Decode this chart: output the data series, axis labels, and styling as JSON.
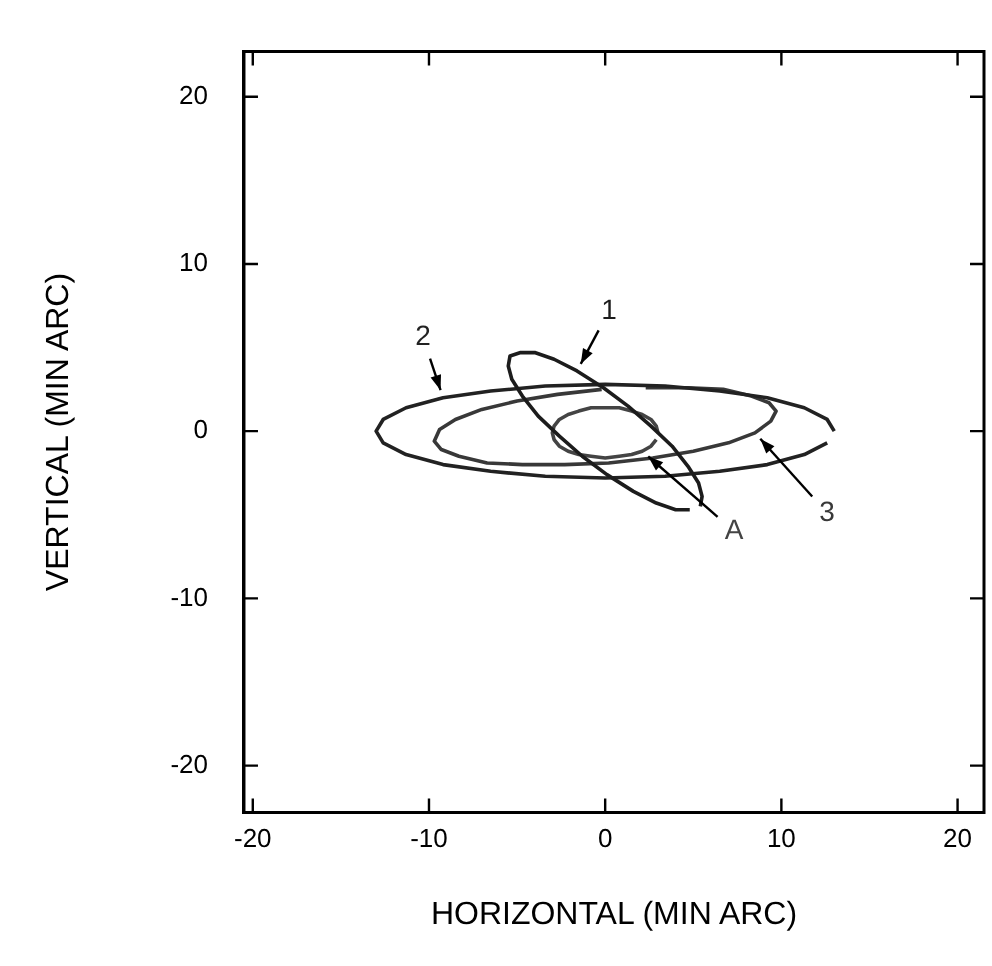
{
  "chart_data": {
    "type": "line",
    "xlabel": "HORIZONTAL (MIN ARC)",
    "ylabel": "VERTICAL (MIN ARC)",
    "xlim": [
      -20.5,
      21.5
    ],
    "ylim": [
      -22.8,
      22.7
    ],
    "xticks": [
      -20,
      -10,
      0,
      10,
      20
    ],
    "yticks": [
      -20,
      -10,
      0,
      10,
      20
    ],
    "marker": "none",
    "line_style": "solid",
    "legend": false,
    "series": [
      {
        "name": "1",
        "color": "#1c1c1c",
        "x": [
          5.4,
          5.5,
          5.3,
          4.7,
          3.8,
          2.6,
          1.3,
          -0.1,
          -1.6,
          -2.9,
          -4.0,
          -4.8,
          -5.4,
          -5.5,
          -5.3,
          -4.7,
          -3.8,
          -2.6,
          -1.3,
          0.1,
          1.6,
          2.9,
          4.0,
          4.8
        ],
        "values": [
          -4.5,
          -3.9,
          -3.1,
          -2.1,
          -0.9,
          0.3,
          1.5,
          2.6,
          3.6,
          4.3,
          4.7,
          4.7,
          4.5,
          3.9,
          3.1,
          2.1,
          0.9,
          -0.3,
          -1.5,
          -2.6,
          -3.6,
          -4.3,
          -4.7,
          -4.7
        ]
      },
      {
        "name": "2",
        "color": "#222222",
        "x": [
          13,
          12.6,
          11.3,
          9.2,
          6.5,
          3.4,
          0,
          -3.4,
          -6.5,
          -9.2,
          -11.3,
          -12.6,
          -13,
          -12.6,
          -11.3,
          -9.2,
          -6.5,
          -3.4,
          0,
          3.4,
          6.5,
          9.2,
          11.3,
          12.6
        ],
        "values": [
          0,
          0.7,
          1.4,
          2.0,
          2.4,
          2.7,
          2.8,
          2.7,
          2.4,
          2.0,
          1.4,
          0.7,
          0,
          -0.7,
          -1.4,
          -2.0,
          -2.4,
          -2.7,
          -2.8,
          -2.7,
          -2.4,
          -2.0,
          -1.4,
          -0.7
        ]
      },
      {
        "name": "3",
        "color": "#383838",
        "x": [
          -0.2,
          -2.7,
          -5.0,
          -7.0,
          -8.5,
          -9.4,
          -9.7,
          -9.3,
          -8.3,
          -6.7,
          -4.7,
          -2.3,
          0.2,
          2.7,
          5.0,
          7.0,
          8.5,
          9.4,
          9.7,
          9.3,
          8.3,
          6.7,
          4.7,
          2.3
        ],
        "values": [
          2.5,
          2.2,
          1.8,
          1.3,
          0.7,
          0.1,
          -0.6,
          -1.1,
          -1.5,
          -1.9,
          -2.0,
          -2.0,
          -1.9,
          -1.6,
          -1.2,
          -0.7,
          -0.1,
          0.6,
          1.2,
          1.7,
          2.1,
          2.5,
          2.6,
          2.6
        ]
      },
      {
        "name": "A",
        "color": "#444444",
        "x": [
          3,
          2.9,
          2.6,
          2.1,
          1.5,
          0.8,
          0,
          -0.8,
          -1.5,
          -2.1,
          -2.6,
          -2.9,
          -3,
          -2.9,
          -2.6,
          -2.1,
          -1.5,
          -0.8,
          0,
          0.8,
          1.5,
          2.1,
          2.6,
          2.9
        ],
        "values": [
          -0.1,
          0.3,
          0.7,
          1.0,
          1.2,
          1.4,
          1.4,
          1.4,
          1.2,
          1.0,
          0.7,
          0.3,
          -0.1,
          -0.5,
          -0.9,
          -1.2,
          -1.4,
          -1.5,
          -1.6,
          -1.5,
          -1.4,
          -1.2,
          -0.9,
          -0.5
        ]
      }
    ]
  }
}
